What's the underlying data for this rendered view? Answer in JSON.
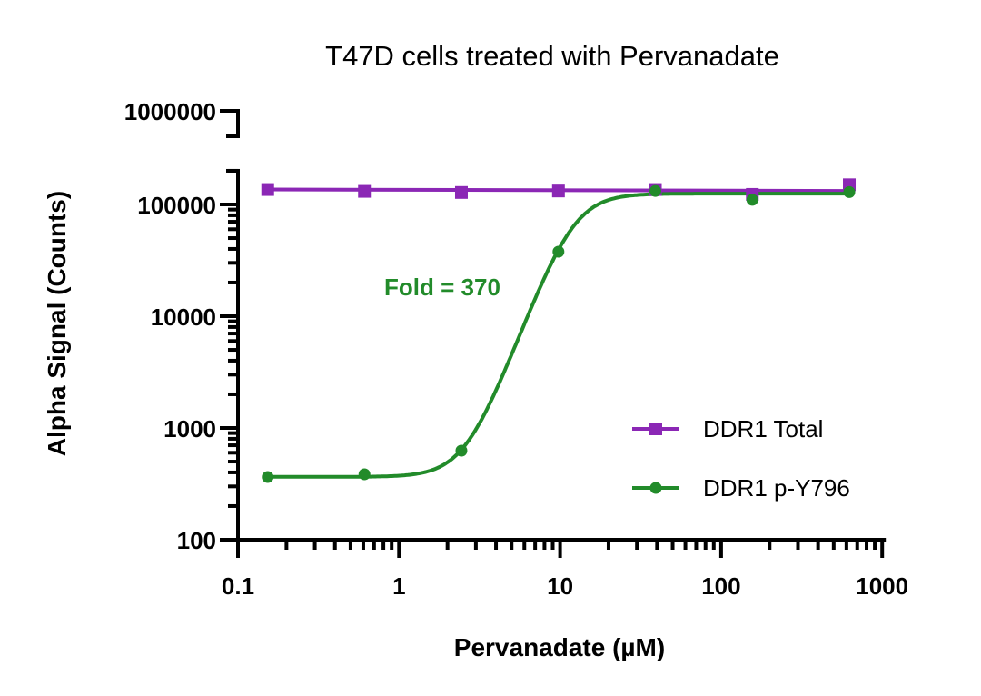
{
  "chart_data": {
    "type": "scatter",
    "title": "T47D cells treated with Pervanadate",
    "xlabel": "Pervanadate (µM)",
    "ylabel": "Alpha Signal (Counts)",
    "x_scale": "log",
    "y_scale": "log",
    "xlim": [
      0.1,
      1000
    ],
    "ylim": [
      100,
      1000000
    ],
    "y_axis_break": [
      200000,
      1000000
    ],
    "x_ticks": [
      "0.1",
      "1",
      "10",
      "100",
      "1000"
    ],
    "y_ticks": [
      "100",
      "1000",
      "10000",
      "100000",
      "1000000"
    ],
    "grid": false,
    "legend_position": "right",
    "x": [
      0.153,
      0.61,
      2.44,
      9.77,
      39.06,
      156.25,
      625
    ],
    "series": [
      {
        "name": "DDR1 Total",
        "color": "#8b27b5",
        "marker": "square",
        "values": [
          136000,
          131000,
          128000,
          132000,
          136000,
          123000,
          150000
        ],
        "fit": "flat"
      },
      {
        "name": "DDR1 p-Y796",
        "color": "#228b2a",
        "marker": "circle",
        "values": [
          364,
          385,
          626,
          37800,
          132000,
          110000,
          129000
        ],
        "fit": "sigmoidal"
      }
    ],
    "annotations": [
      {
        "text": "Fold = 370",
        "color": "#228b2a"
      }
    ]
  }
}
